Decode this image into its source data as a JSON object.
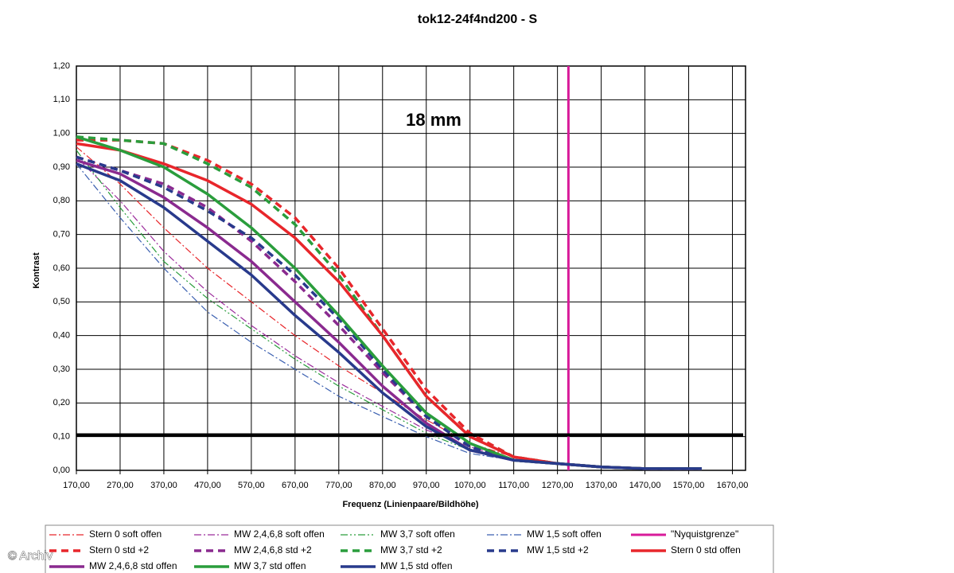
{
  "chart_data": {
    "type": "line",
    "title": "tok12-24f4nd200 - S",
    "annotation": "18 mm",
    "watermark": "© Archiv",
    "x_label": "Frequenz (Linienpaare/Bildhöhe)",
    "y_label": "Kontrast",
    "xlim": [
      170,
      1700
    ],
    "ylim": [
      0,
      1.2
    ],
    "grid": true,
    "legend": "bottom",
    "xticks": [
      {
        "value": 170,
        "label": "170,00"
      },
      {
        "value": 270,
        "label": "270,00"
      },
      {
        "value": 370,
        "label": "370,00"
      },
      {
        "value": 470,
        "label": "470,00"
      },
      {
        "value": 570,
        "label": "570,00"
      },
      {
        "value": 670,
        "label": "670,00"
      },
      {
        "value": 770,
        "label": "770,00"
      },
      {
        "value": 870,
        "label": "870,00"
      },
      {
        "value": 970,
        "label": "970,00"
      },
      {
        "value": 1070,
        "label": "1070,00"
      },
      {
        "value": 1170,
        "label": "1170,00"
      },
      {
        "value": 1270,
        "label": "1270,00"
      },
      {
        "value": 1370,
        "label": "1370,00"
      },
      {
        "value": 1470,
        "label": "1470,00"
      },
      {
        "value": 1570,
        "label": "1570,00"
      },
      {
        "value": 1670,
        "label": "1670,00"
      }
    ],
    "yticks": [
      {
        "value": 0,
        "label": "0,00"
      },
      {
        "value": 0.1,
        "label": "0,10"
      },
      {
        "value": 0.2,
        "label": "0,20"
      },
      {
        "value": 0.3,
        "label": "0,30"
      },
      {
        "value": 0.4,
        "label": "0,40"
      },
      {
        "value": 0.5,
        "label": "0,50"
      },
      {
        "value": 0.6,
        "label": "0,60"
      },
      {
        "value": 0.7,
        "label": "0,70"
      },
      {
        "value": 0.8,
        "label": "0,80"
      },
      {
        "value": 0.9,
        "label": "0,90"
      },
      {
        "value": 1,
        "label": "1,00"
      },
      {
        "value": 1.1,
        "label": "1,10"
      },
      {
        "value": 1.2,
        "label": "1,20"
      }
    ],
    "reference_line": {
      "value": 0.105,
      "color": "#000000"
    },
    "x": [
      170,
      270,
      370,
      470,
      570,
      670,
      770,
      870,
      970,
      1070,
      1170,
      1270,
      1370,
      1470,
      1600
    ],
    "series": [
      {
        "name": "Stern 0 soft offen",
        "color": "#e8262b",
        "dash": "dashdot",
        "width": 1.2,
        "values": [
          0.96,
          0.85,
          0.72,
          0.6,
          0.5,
          0.4,
          0.31,
          0.23,
          0.15,
          0.08,
          0.04,
          0.02,
          0.01,
          0.005,
          0.005
        ]
      },
      {
        "name": "MW 2,4,6,8 soft offen",
        "color": "#9b2a9b",
        "dash": "dashdot",
        "width": 1.2,
        "values": [
          0.93,
          0.8,
          0.65,
          0.53,
          0.43,
          0.34,
          0.26,
          0.19,
          0.12,
          0.07,
          0.03,
          0.02,
          0.01,
          0.005,
          0.005
        ]
      },
      {
        "name": "MW 3,7 soft offen",
        "color": "#2a9d3c",
        "dash": "dashdotdot",
        "width": 1.2,
        "values": [
          0.95,
          0.78,
          0.62,
          0.51,
          0.42,
          0.33,
          0.25,
          0.18,
          0.11,
          0.06,
          0.03,
          0.02,
          0.01,
          0.005,
          0.005
        ]
      },
      {
        "name": "MW 1,5 soft offen",
        "color": "#3a5fb0",
        "dash": "dashdot",
        "width": 1.2,
        "values": [
          0.91,
          0.75,
          0.6,
          0.47,
          0.38,
          0.3,
          0.22,
          0.16,
          0.1,
          0.05,
          0.03,
          0.02,
          0.01,
          0.005,
          0.005
        ]
      },
      {
        "name": "\"Nyquistgrenze\"",
        "color": "#d81b9a",
        "dash": "solid",
        "width": 3,
        "x": [
          1295,
          1295
        ],
        "values": [
          0,
          1.2
        ]
      },
      {
        "name": "Stern 0 std +2",
        "color": "#e8262b",
        "dash": "dashed",
        "width": 3.5,
        "values": [
          0.98,
          0.98,
          0.97,
          0.92,
          0.85,
          0.75,
          0.6,
          0.42,
          0.24,
          0.11,
          0.04,
          0.02,
          0.01,
          0.005,
          0.005
        ]
      },
      {
        "name": "MW 2,4,6,8 std +2",
        "color": "#8a2a8f",
        "dash": "dashed",
        "width": 3.5,
        "values": [
          0.93,
          0.89,
          0.85,
          0.78,
          0.68,
          0.56,
          0.43,
          0.29,
          0.16,
          0.07,
          0.03,
          0.02,
          0.01,
          0.005,
          0.005
        ]
      },
      {
        "name": "MW 3,7 std +2",
        "color": "#2a9d3c",
        "dash": "dashed",
        "width": 3.5,
        "values": [
          0.99,
          0.98,
          0.97,
          0.91,
          0.84,
          0.73,
          0.58,
          0.4,
          0.22,
          0.1,
          0.04,
          0.02,
          0.01,
          0.005,
          0.005
        ]
      },
      {
        "name": "MW 1,5 std +2",
        "color": "#283a8c",
        "dash": "dashed",
        "width": 3.5,
        "values": [
          0.93,
          0.89,
          0.84,
          0.77,
          0.69,
          0.58,
          0.45,
          0.3,
          0.16,
          0.07,
          0.03,
          0.02,
          0.01,
          0.005,
          0.005
        ]
      },
      {
        "name": "Stern 0 std offen",
        "color": "#e8262b",
        "dash": "solid",
        "width": 3.5,
        "values": [
          0.97,
          0.95,
          0.91,
          0.86,
          0.79,
          0.69,
          0.56,
          0.4,
          0.22,
          0.1,
          0.04,
          0.02,
          0.01,
          0.005,
          0.005
        ]
      },
      {
        "name": "MW 2,4,6,8 std offen",
        "color": "#8a2a8f",
        "dash": "solid",
        "width": 3.5,
        "values": [
          0.92,
          0.88,
          0.81,
          0.72,
          0.62,
          0.5,
          0.38,
          0.25,
          0.14,
          0.06,
          0.03,
          0.02,
          0.01,
          0.005,
          0.005
        ]
      },
      {
        "name": "MW 3,7 std offen",
        "color": "#2a9d3c",
        "dash": "solid",
        "width": 3.5,
        "values": [
          0.99,
          0.95,
          0.9,
          0.82,
          0.72,
          0.6,
          0.46,
          0.31,
          0.17,
          0.08,
          0.03,
          0.02,
          0.01,
          0.005,
          0.005
        ]
      },
      {
        "name": "MW 1,5 std offen",
        "color": "#283a8c",
        "dash": "solid",
        "width": 3.5,
        "values": [
          0.91,
          0.86,
          0.78,
          0.68,
          0.58,
          0.46,
          0.35,
          0.23,
          0.13,
          0.06,
          0.03,
          0.02,
          0.01,
          0.005,
          0.005
        ]
      }
    ]
  }
}
